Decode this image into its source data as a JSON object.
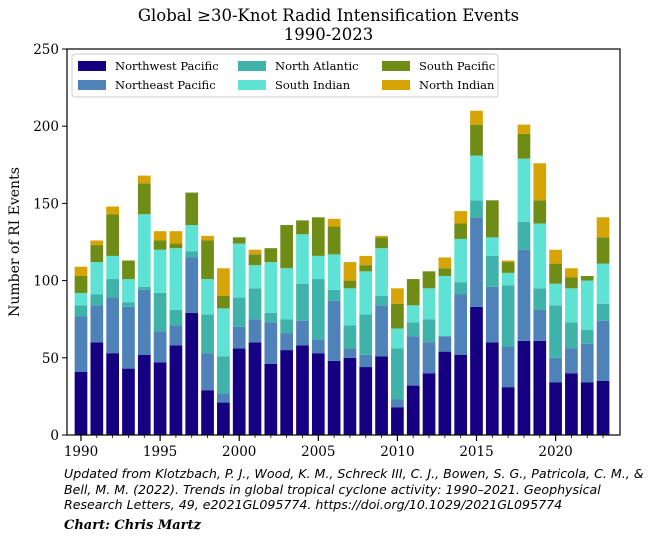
{
  "chart_data": {
    "type": "bar",
    "stacked": true,
    "title": "Global ≥30-Knot Radid Intensification Events",
    "subtitle": "1990-2023",
    "xlabel": "",
    "ylabel": "Number of RI Events",
    "ylim": [
      0,
      250
    ],
    "yticks": [
      0,
      50,
      100,
      150,
      200,
      250
    ],
    "xticks": [
      1990,
      1995,
      2000,
      2005,
      2010,
      2015,
      2020
    ],
    "grid": false,
    "legend_placement": "top-left",
    "categories": [
      1990,
      1991,
      1992,
      1993,
      1994,
      1995,
      1996,
      1997,
      1998,
      1999,
      2000,
      2001,
      2002,
      2003,
      2004,
      2005,
      2006,
      2007,
      2008,
      2009,
      2010,
      2011,
      2012,
      2013,
      2014,
      2015,
      2016,
      2017,
      2018,
      2019,
      2020,
      2021,
      2022,
      2023
    ],
    "series": [
      {
        "name": "Northwest Pacific",
        "color": "#140080",
        "values": [
          41,
          60,
          53,
          43,
          52,
          47,
          58,
          79,
          29,
          21,
          56,
          60,
          46,
          55,
          58,
          53,
          48,
          50,
          44,
          51,
          18,
          32,
          40,
          54,
          52,
          83,
          60,
          31,
          61,
          61,
          34,
          40,
          34,
          35
        ]
      },
      {
        "name": "Northeast Pacific",
        "color": "#4f82b8",
        "values": [
          36,
          24,
          36,
          40,
          42,
          20,
          13,
          36,
          24,
          6,
          14,
          15,
          27,
          11,
          16,
          9,
          39,
          6,
          8,
          33,
          5,
          32,
          20,
          10,
          39,
          58,
          36,
          26,
          59,
          20,
          16,
          16,
          25,
          39
        ]
      },
      {
        "name": "North Atlantic",
        "color": "#3fb2aa",
        "values": [
          7,
          7,
          12,
          3,
          2,
          25,
          10,
          4,
          25,
          24,
          19,
          20,
          6,
          9,
          24,
          39,
          7,
          15,
          26,
          6,
          33,
          9,
          15,
          0,
          8,
          11,
          20,
          40,
          18,
          14,
          34,
          17,
          9,
          11
        ]
      },
      {
        "name": "South Indian",
        "color": "#5ee2d4",
        "values": [
          8,
          21,
          15,
          15,
          47,
          28,
          40,
          17,
          23,
          31,
          35,
          15,
          33,
          33,
          32,
          15,
          23,
          24,
          28,
          31,
          13,
          11,
          20,
          39,
          28,
          29,
          12,
          8,
          41,
          42,
          14,
          22,
          32,
          26
        ]
      },
      {
        "name": "South Pacific",
        "color": "#6e8c16",
        "values": [
          11,
          11,
          27,
          12,
          20,
          6,
          3,
          21,
          25,
          8,
          4,
          7,
          9,
          28,
          9,
          25,
          18,
          5,
          4,
          7,
          16,
          17,
          11,
          5,
          10,
          20,
          24,
          7,
          16,
          15,
          13,
          7,
          3,
          17
        ]
      },
      {
        "name": "North Indian",
        "color": "#d6a404",
        "values": [
          6,
          3,
          5,
          0,
          5,
          6,
          8,
          0,
          3,
          18,
          0,
          3,
          0,
          0,
          0,
          0,
          5,
          12,
          6,
          1,
          10,
          0,
          0,
          7,
          8,
          9,
          0,
          1,
          6,
          24,
          9,
          6,
          0,
          13
        ]
      }
    ]
  },
  "caption": "Updated from Klotzbach, P. J., Wood, K. M., Schreck III, C. J., Bowen, S. G., Patricola, C. M., & Bell, M. M. (2022). Trends in global tropical cyclone activity: 1990–2021. Geophysical Research Letters, 49, e2021GL095774. https://doi.org/10.1029/2021GL095774",
  "credit": "Chart: Chris Martz"
}
